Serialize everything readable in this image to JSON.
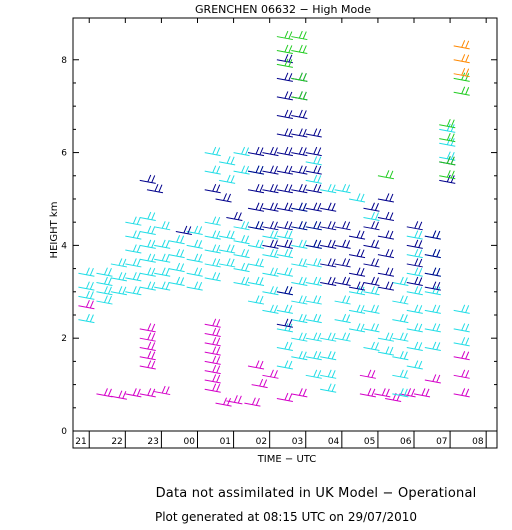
{
  "chart_data": {
    "type": "scatter",
    "title": "GRENCHEN 06632 − High Mode",
    "xlabel": "TIME − UTC",
    "ylabel": "HEIGHT km",
    "x_ticks": [
      "21",
      "22",
      "23",
      "00",
      "01",
      "02",
      "03",
      "04",
      "05",
      "06",
      "07",
      "08"
    ],
    "xlim": [
      20.55,
      32.3
    ],
    "y_ticks": [
      "0",
      "2",
      "4",
      "6",
      "8"
    ],
    "ylim": [
      0,
      8.9
    ],
    "grid": false,
    "legend": "none",
    "colors": {
      "magenta": "#d400c8",
      "cyan": "#22dde6",
      "navy": "#00008b",
      "green": "#22cc22",
      "orange": "#ff8800"
    },
    "series": [
      {
        "color": "magenta",
        "points": [
          [
            20.7,
            2.7
          ],
          [
            21.2,
            0.8
          ],
          [
            21.6,
            0.75
          ],
          [
            22.0,
            0.8
          ],
          [
            22.4,
            0.8
          ],
          [
            22.8,
            0.85
          ],
          [
            22.4,
            1.4
          ],
          [
            22.4,
            1.6
          ],
          [
            22.4,
            1.8
          ],
          [
            22.4,
            2.0
          ],
          [
            22.4,
            2.2
          ],
          [
            24.2,
            2.3
          ],
          [
            24.2,
            2.1
          ],
          [
            24.2,
            1.9
          ],
          [
            24.2,
            1.7
          ],
          [
            24.2,
            1.5
          ],
          [
            24.2,
            1.3
          ],
          [
            24.2,
            1.1
          ],
          [
            24.2,
            0.9
          ],
          [
            24.5,
            0.6
          ],
          [
            24.8,
            0.65
          ],
          [
            25.3,
            0.6
          ],
          [
            25.5,
            1.0
          ],
          [
            25.4,
            1.4
          ],
          [
            25.8,
            1.2
          ],
          [
            26.2,
            0.7
          ],
          [
            26.6,
            0.8
          ],
          [
            28.5,
            1.2
          ],
          [
            28.5,
            0.8
          ],
          [
            28.9,
            0.8
          ],
          [
            29.2,
            0.7
          ],
          [
            29.6,
            0.8
          ],
          [
            30.0,
            0.8
          ],
          [
            30.3,
            1.1
          ],
          [
            31.1,
            1.6
          ],
          [
            31.1,
            1.2
          ],
          [
            31.1,
            0.8
          ]
        ]
      },
      {
        "color": "cyan",
        "points": [
          [
            20.7,
            3.4
          ],
          [
            20.7,
            3.1
          ],
          [
            20.7,
            2.9
          ],
          [
            20.7,
            2.4
          ],
          [
            21.2,
            3.4
          ],
          [
            21.2,
            3.2
          ],
          [
            21.2,
            3.0
          ],
          [
            21.2,
            2.8
          ],
          [
            21.6,
            3.6
          ],
          [
            21.6,
            3.3
          ],
          [
            21.6,
            3.0
          ],
          [
            22.0,
            4.5
          ],
          [
            22.0,
            4.2
          ],
          [
            22.0,
            3.9
          ],
          [
            22.0,
            3.6
          ],
          [
            22.0,
            3.3
          ],
          [
            22.0,
            3.0
          ],
          [
            22.4,
            4.6
          ],
          [
            22.4,
            4.3
          ],
          [
            22.4,
            4.0
          ],
          [
            22.4,
            3.7
          ],
          [
            22.4,
            3.4
          ],
          [
            22.4,
            3.1
          ],
          [
            22.8,
            4.4
          ],
          [
            22.8,
            4.0
          ],
          [
            22.8,
            3.7
          ],
          [
            22.8,
            3.4
          ],
          [
            22.8,
            3.1
          ],
          [
            23.2,
            4.1
          ],
          [
            23.2,
            3.8
          ],
          [
            23.2,
            3.5
          ],
          [
            23.2,
            3.2
          ],
          [
            23.7,
            4.3
          ],
          [
            23.7,
            4.0
          ],
          [
            23.7,
            3.7
          ],
          [
            23.7,
            3.4
          ],
          [
            23.7,
            3.1
          ],
          [
            24.2,
            6.0
          ],
          [
            24.2,
            5.6
          ],
          [
            24.2,
            4.5
          ],
          [
            24.2,
            4.2
          ],
          [
            24.2,
            3.9
          ],
          [
            24.2,
            3.6
          ],
          [
            24.2,
            3.3
          ],
          [
            24.6,
            5.8
          ],
          [
            24.6,
            5.4
          ],
          [
            24.6,
            4.2
          ],
          [
            24.6,
            3.9
          ],
          [
            24.6,
            3.6
          ],
          [
            25.0,
            6.0
          ],
          [
            25.0,
            5.6
          ],
          [
            25.0,
            4.4
          ],
          [
            25.0,
            4.1
          ],
          [
            25.0,
            3.8
          ],
          [
            25.0,
            3.5
          ],
          [
            25.0,
            3.2
          ],
          [
            25.4,
            5.6
          ],
          [
            25.4,
            4.4
          ],
          [
            25.4,
            4.0
          ],
          [
            25.4,
            3.6
          ],
          [
            25.4,
            3.2
          ],
          [
            25.4,
            2.8
          ],
          [
            25.8,
            4.2
          ],
          [
            25.8,
            3.8
          ],
          [
            25.8,
            3.4
          ],
          [
            25.8,
            3.0
          ],
          [
            25.8,
            2.6
          ],
          [
            26.2,
            4.2
          ],
          [
            26.2,
            3.8
          ],
          [
            26.2,
            3.4
          ],
          [
            26.2,
            3.0
          ],
          [
            26.2,
            2.6
          ],
          [
            26.2,
            2.2
          ],
          [
            26.2,
            1.8
          ],
          [
            26.2,
            1.4
          ],
          [
            26.6,
            4.8
          ],
          [
            26.6,
            4.4
          ],
          [
            26.6,
            4.0
          ],
          [
            26.6,
            3.6
          ],
          [
            26.6,
            3.2
          ],
          [
            26.6,
            2.8
          ],
          [
            26.6,
            2.4
          ],
          [
            26.6,
            2.0
          ],
          [
            26.6,
            1.6
          ],
          [
            27.0,
            5.8
          ],
          [
            27.0,
            5.4
          ],
          [
            27.0,
            4.4
          ],
          [
            27.0,
            4.0
          ],
          [
            27.0,
            3.6
          ],
          [
            27.0,
            3.2
          ],
          [
            27.0,
            2.8
          ],
          [
            27.0,
            2.4
          ],
          [
            27.0,
            2.0
          ],
          [
            27.0,
            1.6
          ],
          [
            27.0,
            1.2
          ],
          [
            27.4,
            5.2
          ],
          [
            27.4,
            2.0
          ],
          [
            27.4,
            1.6
          ],
          [
            27.4,
            1.2
          ],
          [
            27.4,
            0.9
          ],
          [
            27.8,
            5.2
          ],
          [
            27.8,
            2.8
          ],
          [
            27.8,
            2.4
          ],
          [
            27.8,
            2.0
          ],
          [
            28.2,
            5.0
          ],
          [
            28.2,
            3.0
          ],
          [
            28.2,
            2.6
          ],
          [
            28.2,
            2.2
          ],
          [
            28.6,
            4.6
          ],
          [
            28.6,
            3.0
          ],
          [
            28.6,
            2.6
          ],
          [
            28.6,
            2.2
          ],
          [
            28.6,
            1.8
          ],
          [
            29.0,
            2.0
          ],
          [
            29.0,
            1.7
          ],
          [
            29.4,
            3.2
          ],
          [
            29.4,
            2.8
          ],
          [
            29.4,
            2.4
          ],
          [
            29.4,
            2.0
          ],
          [
            29.4,
            1.6
          ],
          [
            29.4,
            1.2
          ],
          [
            29.4,
            0.8
          ],
          [
            29.8,
            4.2
          ],
          [
            29.8,
            3.8
          ],
          [
            29.8,
            3.4
          ],
          [
            29.8,
            3.0
          ],
          [
            29.8,
            2.6
          ],
          [
            29.8,
            2.2
          ],
          [
            29.8,
            1.8
          ],
          [
            29.8,
            1.4
          ],
          [
            30.3,
            4.2
          ],
          [
            30.3,
            3.8
          ],
          [
            30.3,
            3.4
          ],
          [
            30.3,
            3.0
          ],
          [
            30.3,
            2.6
          ],
          [
            30.3,
            2.2
          ],
          [
            30.3,
            1.8
          ],
          [
            30.7,
            6.5
          ],
          [
            30.7,
            6.2
          ],
          [
            30.7,
            5.9
          ],
          [
            31.1,
            2.6
          ],
          [
            31.1,
            2.2
          ],
          [
            31.1,
            1.9
          ]
        ]
      },
      {
        "color": "navy",
        "points": [
          [
            22.4,
            5.4
          ],
          [
            22.6,
            5.2
          ],
          [
            23.4,
            4.3
          ],
          [
            24.2,
            5.2
          ],
          [
            24.5,
            5.0
          ],
          [
            24.8,
            4.6
          ],
          [
            25.4,
            6.0
          ],
          [
            25.4,
            5.6
          ],
          [
            25.4,
            5.2
          ],
          [
            25.4,
            4.8
          ],
          [
            25.4,
            4.4
          ],
          [
            25.8,
            6.0
          ],
          [
            25.8,
            5.6
          ],
          [
            25.8,
            5.2
          ],
          [
            25.8,
            4.8
          ],
          [
            25.8,
            4.4
          ],
          [
            25.8,
            4.0
          ],
          [
            26.2,
            8.0
          ],
          [
            26.2,
            7.6
          ],
          [
            26.2,
            7.2
          ],
          [
            26.2,
            6.8
          ],
          [
            26.2,
            6.4
          ],
          [
            26.2,
            6.0
          ],
          [
            26.2,
            5.6
          ],
          [
            26.2,
            5.2
          ],
          [
            26.2,
            4.8
          ],
          [
            26.2,
            4.4
          ],
          [
            26.2,
            4.0
          ],
          [
            26.2,
            3.0
          ],
          [
            26.2,
            2.3
          ],
          [
            26.6,
            7.6
          ],
          [
            26.6,
            7.2
          ],
          [
            26.6,
            6.8
          ],
          [
            26.6,
            6.4
          ],
          [
            26.6,
            6.0
          ],
          [
            26.6,
            5.6
          ],
          [
            26.6,
            5.2
          ],
          [
            26.6,
            4.8
          ],
          [
            26.6,
            4.4
          ],
          [
            27.0,
            6.4
          ],
          [
            27.0,
            6.0
          ],
          [
            27.0,
            5.6
          ],
          [
            27.0,
            5.2
          ],
          [
            27.0,
            4.8
          ],
          [
            27.0,
            4.4
          ],
          [
            27.0,
            4.0
          ],
          [
            27.4,
            4.8
          ],
          [
            27.4,
            4.4
          ],
          [
            27.4,
            4.0
          ],
          [
            27.4,
            3.6
          ],
          [
            27.4,
            3.2
          ],
          [
            27.8,
            4.4
          ],
          [
            27.8,
            4.0
          ],
          [
            27.8,
            3.6
          ],
          [
            27.8,
            3.2
          ],
          [
            28.2,
            4.2
          ],
          [
            28.2,
            3.8
          ],
          [
            28.2,
            3.4
          ],
          [
            28.2,
            3.1
          ],
          [
            28.6,
            4.8
          ],
          [
            28.6,
            4.4
          ],
          [
            28.6,
            4.0
          ],
          [
            28.6,
            3.6
          ],
          [
            28.6,
            3.2
          ],
          [
            29.0,
            5.0
          ],
          [
            29.0,
            4.6
          ],
          [
            29.0,
            4.2
          ],
          [
            29.0,
            3.8
          ],
          [
            29.0,
            3.4
          ],
          [
            29.0,
            3.1
          ],
          [
            29.8,
            4.4
          ],
          [
            29.8,
            4.0
          ],
          [
            29.8,
            3.6
          ],
          [
            29.8,
            3.2
          ],
          [
            30.3,
            4.2
          ],
          [
            30.3,
            3.8
          ],
          [
            30.3,
            3.4
          ],
          [
            30.3,
            3.1
          ],
          [
            30.7,
            5.8
          ],
          [
            30.7,
            5.4
          ]
        ]
      },
      {
        "color": "green",
        "points": [
          [
            26.2,
            8.5
          ],
          [
            26.2,
            8.2
          ],
          [
            26.2,
            7.9
          ],
          [
            26.6,
            8.5
          ],
          [
            26.6,
            8.2
          ],
          [
            26.6,
            7.6
          ],
          [
            26.6,
            7.2
          ],
          [
            29.0,
            5.5
          ],
          [
            30.7,
            6.6
          ],
          [
            30.7,
            6.3
          ],
          [
            30.7,
            5.8
          ],
          [
            30.7,
            5.5
          ],
          [
            31.1,
            7.6
          ],
          [
            31.1,
            7.3
          ]
        ]
      },
      {
        "color": "orange",
        "points": [
          [
            31.1,
            8.3
          ],
          [
            31.1,
            8.0
          ],
          [
            31.1,
            7.7
          ]
        ]
      }
    ]
  },
  "footer": {
    "line1": "Data not assimilated in UK Model − Operational",
    "line2": "Plot generated at 08:15 UTC on 29/07/2010"
  }
}
